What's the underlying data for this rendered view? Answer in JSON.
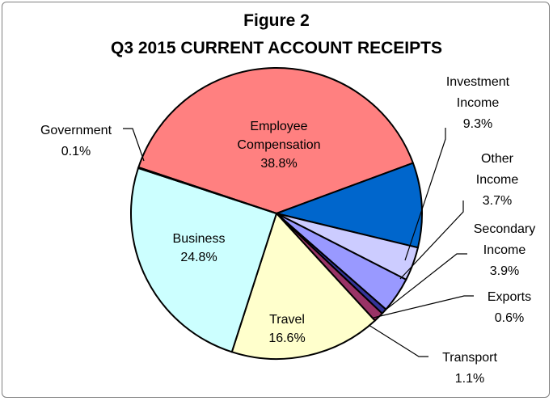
{
  "chart_data": {
    "type": "pie",
    "title": "Figure 2",
    "subtitle": "Q3 2015 CURRENT ACCOUNT RECEIPTS",
    "slices": [
      {
        "label": [
          "Employee",
          "Compensation"
        ],
        "value": 38.8,
        "display": "38.8%",
        "color": "#ff8080"
      },
      {
        "label": [
          "Investment",
          "Income"
        ],
        "value": 9.3,
        "display": "9.3%",
        "color": "#0066cc"
      },
      {
        "label": [
          "Other",
          "Income"
        ],
        "value": 3.7,
        "display": "3.7%",
        "color": "#ccccff"
      },
      {
        "label": [
          "Secondary",
          "Income"
        ],
        "value": 3.9,
        "display": "3.9%",
        "color": "#9999ff"
      },
      {
        "label": [
          "Exports"
        ],
        "value": 0.6,
        "display": "0.6%",
        "color": "#333399"
      },
      {
        "label": [
          "Transport"
        ],
        "value": 1.1,
        "display": "1.1%",
        "color": "#993366"
      },
      {
        "label": [
          "Travel"
        ],
        "value": 16.6,
        "display": "16.6%",
        "color": "#ffffcc"
      },
      {
        "label": [
          "Business"
        ],
        "value": 24.8,
        "display": "24.8%",
        "color": "#ccffff"
      },
      {
        "label": [
          "Government"
        ],
        "value": 0.1,
        "display": "0.1%",
        "color": "#c0c0c0"
      }
    ]
  }
}
